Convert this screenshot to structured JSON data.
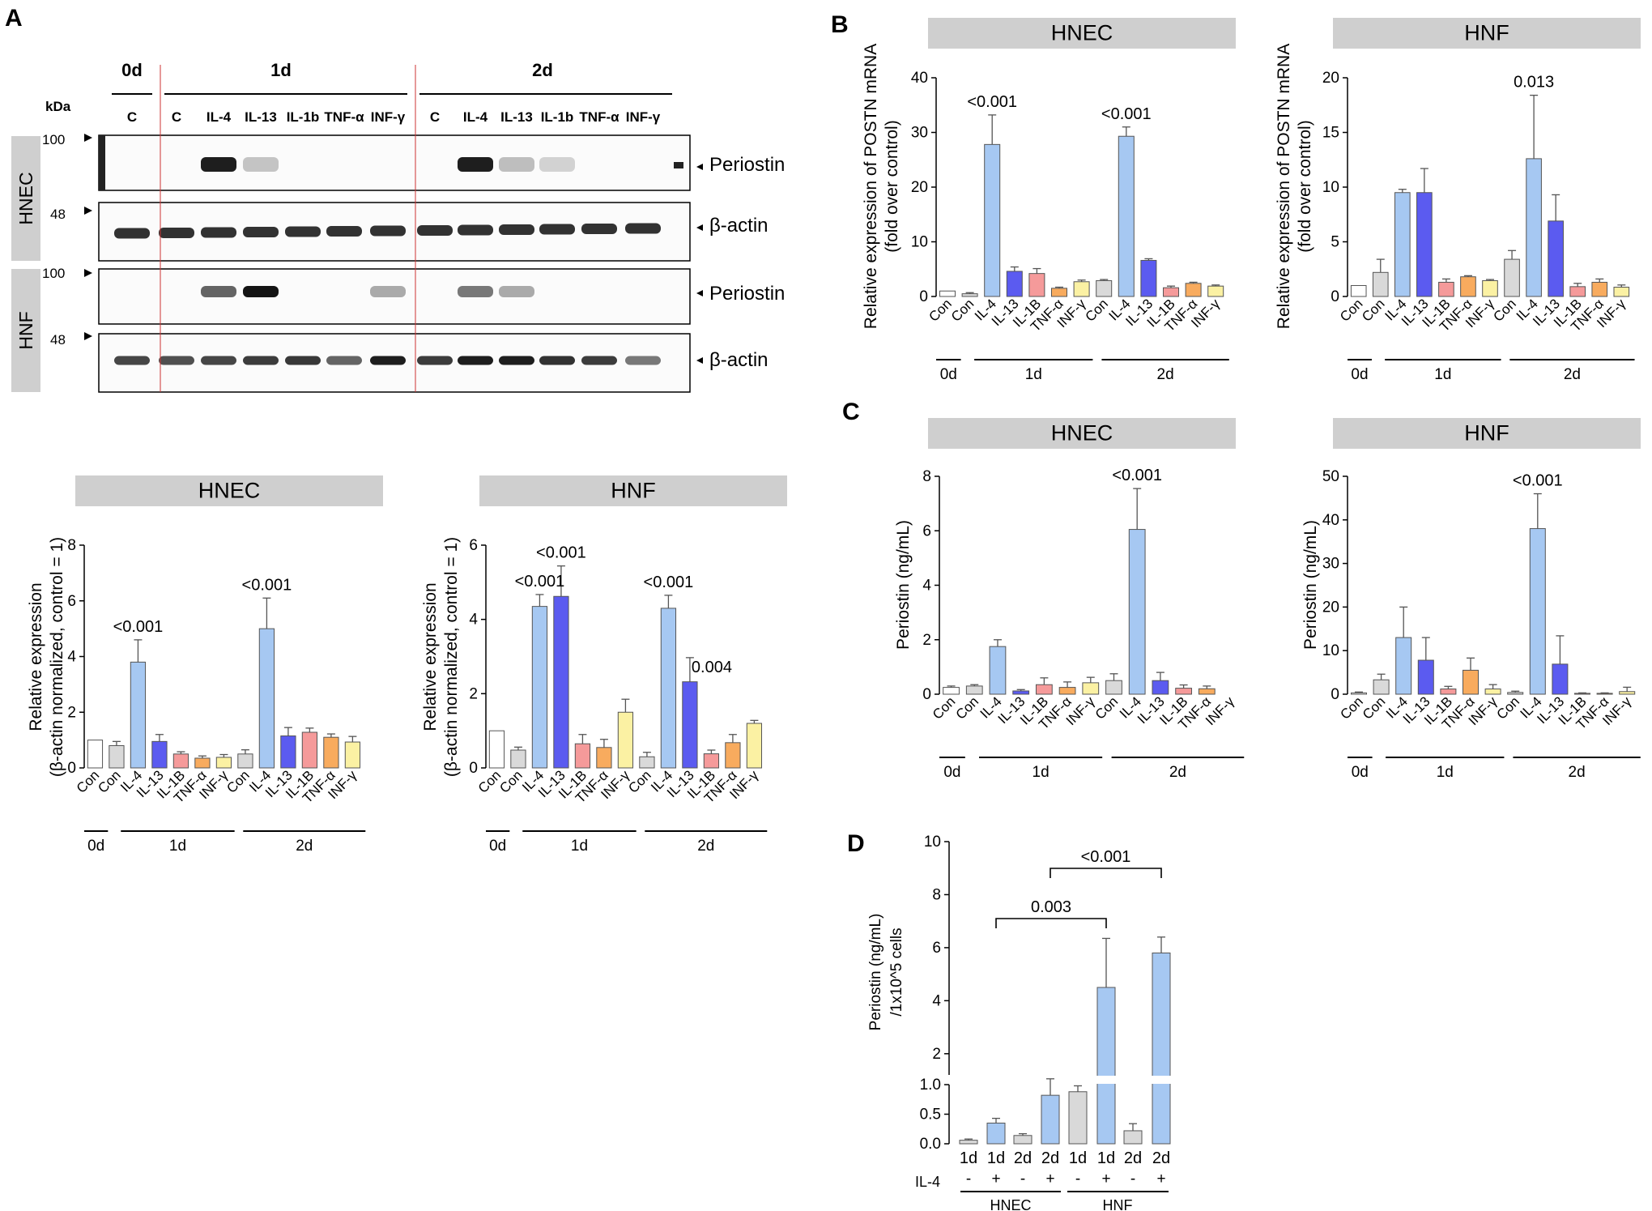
{
  "panel_labels": {
    "A": "A",
    "B": "B",
    "C": "C",
    "D": "D"
  },
  "western_blot": {
    "kda_label": "kDa",
    "markers": {
      "m100_top": "100",
      "m48_top": "48",
      "m100_bottom": "100",
      "m48_bottom": "48"
    },
    "time_headers": [
      "0d",
      "1d",
      "2d"
    ],
    "lanes": [
      "C",
      "C",
      "IL-4",
      "IL-13",
      "IL-1b",
      "TNF-α",
      "INF-γ",
      "C",
      "IL-4",
      "IL-13",
      "IL-1b",
      "TNF-α",
      "INF-γ"
    ],
    "cell_labels": [
      "HNEC",
      "HNF"
    ],
    "band_labels": [
      "Periostin",
      "β-actin",
      "Periostin",
      "β-actin"
    ]
  },
  "axis_category_labels": [
    "Con",
    "Con",
    "IL-4",
    "IL-13",
    "IL-1B",
    "TNF-α",
    "INF-γ",
    "Con",
    "IL-4",
    "IL-13",
    "IL-1B",
    "TNF-α",
    "INF-γ"
  ],
  "group_labels": [
    "0d",
    "1d",
    "2d"
  ],
  "chart_data": [
    {
      "id": "A-HNEC",
      "type": "bar",
      "title": "HNEC",
      "ylabel": "Relative expression (β-actin normalized, control = 1)",
      "ylabel_lines": [
        "Relative expression",
        "(β-actin normalized, control = 1)"
      ],
      "ylim": [
        0,
        8
      ],
      "yticks": [
        "0",
        "2",
        "4",
        "6",
        "8"
      ],
      "values": [
        1.0,
        0.8,
        3.8,
        0.95,
        0.5,
        0.35,
        0.38,
        0.5,
        5.0,
        1.15,
        1.28,
        1.1,
        0.93
      ],
      "errors": [
        0,
        0.15,
        0.8,
        0.25,
        0.08,
        0.08,
        0.1,
        0.15,
        1.1,
        0.3,
        0.15,
        0.12,
        0.2
      ],
      "annotations": [
        {
          "bar": 2,
          "text": "<0.001"
        },
        {
          "bar": 8,
          "text": "<0.001"
        }
      ]
    },
    {
      "id": "A-HNF",
      "type": "bar",
      "title": "HNF",
      "ylabel": "Relative expression (β-actin normalized, control = 1)",
      "ylabel_lines": [
        "Relative expression",
        "(β-actin normalized, control = 1)"
      ],
      "ylim": [
        0,
        6
      ],
      "yticks": [
        "0",
        "2",
        "4",
        "6"
      ],
      "values": [
        1.0,
        0.48,
        4.35,
        4.62,
        0.65,
        0.55,
        1.5,
        0.3,
        4.3,
        2.32,
        0.38,
        0.68,
        1.2
      ],
      "errors": [
        0,
        0.08,
        0.32,
        0.82,
        0.25,
        0.22,
        0.35,
        0.12,
        0.35,
        0.65,
        0.1,
        0.22,
        0.08
      ],
      "annotations": [
        {
          "bar": 2,
          "text": "<0.001"
        },
        {
          "bar": 3,
          "text": "<0.001"
        },
        {
          "bar": 8,
          "text": "<0.001"
        },
        {
          "bar": 9,
          "text": "0.004"
        }
      ]
    },
    {
      "id": "B-HNEC",
      "type": "bar",
      "title": "HNEC",
      "ylabel": "Relative expression of POSTN mRNA (fold over control)",
      "ylabel_lines": [
        "Relative expression of POSTN mRNA",
        "(fold over control)"
      ],
      "ylim": [
        0,
        40
      ],
      "yticks": [
        "0",
        "10",
        "20",
        "30",
        "40"
      ],
      "values": [
        1.0,
        0.5,
        27.8,
        4.6,
        4.2,
        1.5,
        2.7,
        2.9,
        29.3,
        6.6,
        1.6,
        2.4,
        1.9
      ],
      "errors": [
        0,
        0.2,
        5.4,
        0.8,
        0.9,
        0.2,
        0.3,
        0.2,
        1.7,
        0.3,
        0.3,
        0.2,
        0.2
      ],
      "annotations": [
        {
          "bar": 2,
          "text": "<0.001"
        },
        {
          "bar": 8,
          "text": "<0.001"
        }
      ]
    },
    {
      "id": "B-HNF",
      "type": "bar",
      "title": "HNF",
      "ylabel": "Relative expression of POSTN mRNA (fold over control)",
      "ylabel_lines": [
        "Relative expression of POSTN mRNA",
        "(fold over control)"
      ],
      "ylim": [
        0,
        20
      ],
      "yticks": [
        "0",
        "5",
        "10",
        "15",
        "20"
      ],
      "values": [
        1.0,
        2.2,
        9.5,
        9.5,
        1.3,
        1.8,
        1.45,
        3.4,
        12.6,
        6.9,
        0.9,
        1.3,
        0.85
      ],
      "errors": [
        0,
        1.2,
        0.3,
        2.2,
        0.3,
        0.1,
        0.1,
        0.8,
        5.8,
        2.4,
        0.3,
        0.3,
        0.2
      ],
      "annotations": [
        {
          "bar": 8,
          "text": "0.013"
        }
      ]
    },
    {
      "id": "C-HNEC",
      "type": "bar",
      "title": "HNEC",
      "ylabel": "Periostin (ng/mL)",
      "ylabel_lines": [
        "Periostin (ng/mL)"
      ],
      "ylim": [
        0,
        8
      ],
      "yticks": [
        "0",
        "2",
        "4",
        "6",
        "8"
      ],
      "values": [
        0.25,
        0.3,
        1.75,
        0.12,
        0.35,
        0.25,
        0.42,
        0.5,
        6.05,
        0.5,
        0.22,
        0.2,
        0
      ],
      "errors": [
        0.05,
        0.05,
        0.25,
        0.05,
        0.25,
        0.2,
        0.2,
        0.25,
        1.5,
        0.3,
        0.12,
        0.1,
        0
      ],
      "annotations": [
        {
          "bar": 8,
          "text": "<0.001"
        }
      ]
    },
    {
      "id": "C-HNF",
      "type": "bar",
      "title": "HNF",
      "ylabel": "Periostin (ng/mL)",
      "ylabel_lines": [
        "Periostin (ng/mL)"
      ],
      "ylim": [
        0,
        50
      ],
      "yticks": [
        "0",
        "10",
        "20",
        "30",
        "40",
        "50"
      ],
      "values": [
        0.3,
        3.3,
        13.0,
        7.8,
        1.2,
        5.5,
        1.2,
        0.4,
        38.0,
        6.9,
        0.2,
        0.2,
        0.6
      ],
      "errors": [
        0.2,
        1.3,
        7.0,
        5.2,
        0.6,
        2.8,
        1.0,
        0.3,
        8.0,
        6.5,
        0.1,
        0.1,
        1.0
      ],
      "annotations": [
        {
          "bar": 8,
          "text": "<0.001"
        }
      ]
    },
    {
      "id": "D",
      "type": "bar",
      "title": "",
      "ylabel": "Periostin (ng/mL) /1x10^5 cells",
      "ylabel_lines": [
        "Periostin (ng/mL)",
        "/1x10^5 cells"
      ],
      "axis_break": true,
      "ylim_lower": [
        0,
        1.0
      ],
      "yticks_lower": [
        "0.0",
        "0.5",
        "1.0"
      ],
      "ylim_upper": [
        1.2,
        10
      ],
      "yticks_upper": [
        "2",
        "4",
        "6",
        "8",
        "10"
      ],
      "categories": [
        "1d",
        "1d",
        "2d",
        "2d",
        "1d",
        "1d",
        "2d",
        "2d"
      ],
      "il4_label": "IL-4",
      "il4": [
        "-",
        "+",
        "-",
        "+",
        "-",
        "+",
        "-",
        "+"
      ],
      "groups": [
        "HNEC",
        "HNF"
      ],
      "values": [
        0.06,
        0.35,
        0.14,
        0.82,
        0.88,
        4.5,
        0.22,
        5.8
      ],
      "errors": [
        0.02,
        0.08,
        0.03,
        0.3,
        0.1,
        1.85,
        0.12,
        0.6
      ],
      "colors": [
        "#d9d9d9",
        "#a6c8f2",
        "#d9d9d9",
        "#a6c8f2",
        "#d9d9d9",
        "#a6c8f2",
        "#d9d9d9",
        "#a6c8f2"
      ],
      "comparisons": [
        {
          "from": 1,
          "to": 5,
          "text": "0.003"
        },
        {
          "from": 3,
          "to": 7,
          "text": "<0.001"
        }
      ]
    }
  ],
  "colors": {
    "con_0d": "#ffffff",
    "con": "#d9d9d9",
    "il4": "#a6c8f2",
    "il13": "#5b5bf0",
    "il1b": "#f59a9a",
    "tnfa": "#f8ab5e",
    "infg": "#fbf1a3",
    "title_box": "#cfcfcf"
  }
}
